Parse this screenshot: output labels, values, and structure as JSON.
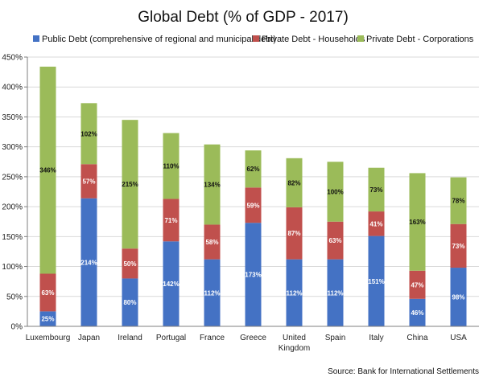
{
  "chart_data": {
    "type": "bar",
    "stacked": true,
    "title": "Global Debt (% of GDP - 2017)",
    "categories": [
      "Luxembourg",
      "Japan",
      "Ireland",
      "Portugal",
      "France",
      "Greece",
      "United Kingdom",
      "Spain",
      "Italy",
      "China",
      "USA"
    ],
    "series": [
      {
        "name": "Public Debt (comprehensive of regional and municipal debt)",
        "color": "#4472C4",
        "values": [
          25,
          214,
          80,
          142,
          112,
          173,
          112,
          112,
          151,
          46,
          98
        ],
        "labels": [
          "25%",
          "214%",
          "80%",
          "142%",
          "112%",
          "173%",
          "112%",
          "112%",
          "151%",
          "46%",
          "98%"
        ]
      },
      {
        "name": "Private Debt - Households",
        "color": "#C0504D",
        "values": [
          63,
          57,
          50,
          71,
          58,
          59,
          87,
          63,
          41,
          47,
          73
        ],
        "labels": [
          "63%",
          "57%",
          "50%",
          "71%",
          "58%",
          "59%",
          "87%",
          "63%",
          "41%",
          "47%",
          "73%"
        ]
      },
      {
        "name": "Private Debt - Corporations",
        "color": "#9BBB59",
        "values": [
          346,
          102,
          215,
          110,
          134,
          62,
          82,
          100,
          73,
          163,
          78
        ],
        "labels": [
          "346%",
          "102%",
          "215%",
          "110%",
          "134%",
          "62%",
          "82%",
          "100%",
          "73%",
          "163%",
          "78%"
        ]
      }
    ],
    "ylim": [
      0,
      450
    ],
    "yticks": [
      0,
      50,
      100,
      150,
      200,
      250,
      300,
      350,
      400,
      450
    ],
    "ytick_labels": [
      "0%",
      "50%",
      "100%",
      "150%",
      "200%",
      "250%",
      "300%",
      "350%",
      "400%",
      "450%"
    ],
    "grid": true,
    "legend_position": "top",
    "source": "Source: Bank for International Settlements"
  }
}
